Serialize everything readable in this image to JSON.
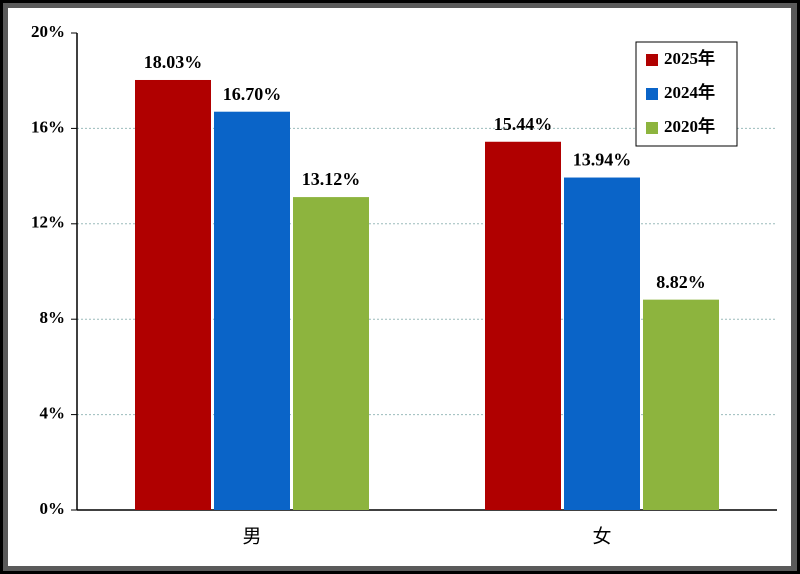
{
  "chart_data": {
    "type": "bar",
    "categories": [
      "男",
      "女"
    ],
    "series": [
      {
        "name": "2025年",
        "color": "#b00000",
        "values": [
          18.03,
          15.44
        ],
        "value_labels": [
          "18.03%",
          "15.44%"
        ]
      },
      {
        "name": "2024年",
        "color": "#0a64c8",
        "values": [
          16.7,
          13.94
        ],
        "value_labels": [
          "16.70%",
          "13.94%"
        ]
      },
      {
        "name": "2020年",
        "color": "#8db43e",
        "values": [
          13.12,
          8.82
        ],
        "value_labels": [
          "13.12%",
          "8.82%"
        ]
      }
    ],
    "ylim": [
      0,
      20
    ],
    "yticks": [
      {
        "value": 0,
        "label": "0%"
      },
      {
        "value": 4,
        "label": "4%"
      },
      {
        "value": 8,
        "label": "8%"
      },
      {
        "value": 12,
        "label": "12%"
      },
      {
        "value": 16,
        "label": "16%"
      },
      {
        "value": 20,
        "label": "20%"
      }
    ],
    "grid": true,
    "legend": "top-right"
  }
}
